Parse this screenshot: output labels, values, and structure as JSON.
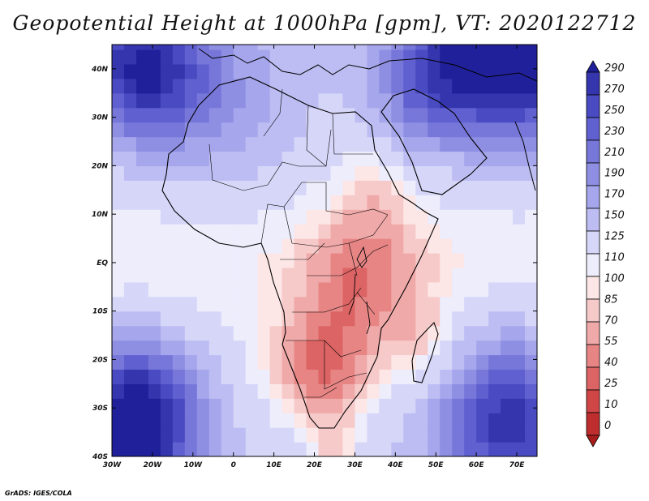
{
  "title": "Geopotential Height at 1000hPa [gpm], VT: 2020122712",
  "footer": "GrADS: IGES/COLA",
  "map": {
    "lon_range": [
      -30,
      75
    ],
    "lat_range": [
      -40,
      45
    ],
    "lat_ticks": [
      {
        "value": 40,
        "label": "40N"
      },
      {
        "value": 30,
        "label": "30N"
      },
      {
        "value": 20,
        "label": "20N"
      },
      {
        "value": 10,
        "label": "10N"
      },
      {
        "value": 0,
        "label": "EQ"
      },
      {
        "value": -10,
        "label": "10S"
      },
      {
        "value": -20,
        "label": "20S"
      },
      {
        "value": -30,
        "label": "30S"
      },
      {
        "value": -40,
        "label": "40S"
      }
    ],
    "lon_ticks": [
      {
        "value": -30,
        "label": "30W"
      },
      {
        "value": -20,
        "label": "20W"
      },
      {
        "value": -10,
        "label": "10W"
      },
      {
        "value": 0,
        "label": "0"
      },
      {
        "value": 10,
        "label": "10E"
      },
      {
        "value": 20,
        "label": "20E"
      },
      {
        "value": 30,
        "label": "30E"
      },
      {
        "value": 40,
        "label": "40E"
      },
      {
        "value": 50,
        "label": "50E"
      },
      {
        "value": 60,
        "label": "60E"
      },
      {
        "value": 70,
        "label": "70E"
      }
    ]
  },
  "colorbar": {
    "levels": [
      {
        "label": "290",
        "color": "#20209a"
      },
      {
        "label": "270",
        "color": "#3535ae"
      },
      {
        "label": "250",
        "color": "#4a4ac2"
      },
      {
        "label": "230",
        "color": "#6060d0"
      },
      {
        "label": "210",
        "color": "#7777da"
      },
      {
        "label": "190",
        "color": "#8e8ee3"
      },
      {
        "label": "170",
        "color": "#a6a6ec"
      },
      {
        "label": "150",
        "color": "#bdbdf3"
      },
      {
        "label": "125",
        "color": "#d6d6f8"
      },
      {
        "label": "110",
        "color": "#ededfc"
      },
      {
        "label": "100",
        "color": "#fce6e6"
      },
      {
        "label": "85",
        "color": "#f7caca"
      },
      {
        "label": "70",
        "color": "#f0a9a9"
      },
      {
        "label": "55",
        "color": "#e78585"
      },
      {
        "label": "40",
        "color": "#dc6464"
      },
      {
        "label": "25",
        "color": "#d04646"
      },
      {
        "label": "10",
        "color": "#bf2e2e"
      },
      {
        "label": "0",
        "color": "#a81c1c"
      }
    ]
  },
  "gph_field": {
    "grid_step_deg": 3,
    "centers": [
      {
        "lon": -22,
        "lat": 40,
        "sigma": 11,
        "amp": 150
      },
      {
        "lon": 70,
        "lat": 47,
        "sigma": 14,
        "amp": 220
      },
      {
        "lon": 48,
        "lat": 36,
        "sigma": 9,
        "amp": 80
      },
      {
        "lon": 0,
        "lat": 30,
        "sigma": 12,
        "amp": 40
      },
      {
        "lon": -24,
        "lat": -32,
        "sigma": 11,
        "amp": 190
      },
      {
        "lon": 68,
        "lat": -32,
        "sigma": 12,
        "amp": 140
      },
      {
        "lon": 22,
        "lat": -22,
        "sigma": 9,
        "amp": -75
      },
      {
        "lon": 32,
        "lat": -3,
        "sigma": 10,
        "amp": -55
      },
      {
        "lon": 25,
        "lat": -38,
        "sigma": 4,
        "amp": -40
      },
      {
        "lon": 47,
        "lat": -16,
        "sigma": 6,
        "amp": -35
      },
      {
        "lon": 35,
        "lat": 14,
        "sigma": 6,
        "amp": -25
      }
    ],
    "base": 110,
    "lat_gradient": 0.9
  }
}
